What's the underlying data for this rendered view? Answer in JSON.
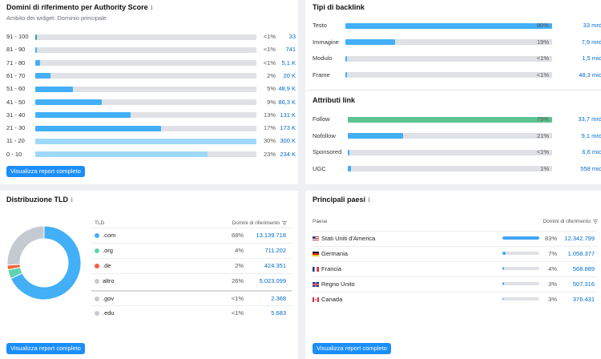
{
  "colors": {
    "bar_blue": "#42aff7",
    "bar_light": "#9ed8fb",
    "bar_teal": "#2aa79b",
    "bar_green": "#5cc391",
    "track": "#dfe1e6",
    "link": "#006dca",
    "button": "#1c8ef7"
  },
  "authority": {
    "title": "Domini di riferimento per Authority Score",
    "subtitle": "Ambito dei widget: Dominio principale",
    "button_label": "Visualizza report completo",
    "rows": [
      {
        "label": "91 - 100",
        "fraction": 0.003,
        "pct": "<1%",
        "value": "33",
        "color": "teal"
      },
      {
        "label": "81 - 90",
        "fraction": 0.003,
        "pct": "<1%",
        "value": "741",
        "color": "blue"
      },
      {
        "label": "71 - 80",
        "fraction": 0.02,
        "pct": "<1%",
        "value": "5,1 K",
        "color": "blue"
      },
      {
        "label": "61 - 70",
        "fraction": 0.07,
        "pct": "2%",
        "value": "20 K",
        "color": "blue"
      },
      {
        "label": "51 - 60",
        "fraction": 0.17,
        "pct": "5%",
        "value": "48,9 K",
        "color": "blue"
      },
      {
        "label": "41 - 50",
        "fraction": 0.3,
        "pct": "9%",
        "value": "86,3 K",
        "color": "blue"
      },
      {
        "label": "31 - 40",
        "fraction": 0.43,
        "pct": "13%",
        "value": "131 K",
        "color": "blue"
      },
      {
        "label": "21 - 30",
        "fraction": 0.57,
        "pct": "17%",
        "value": "173 K",
        "color": "blue"
      },
      {
        "label": "11 - 20",
        "fraction": 1.0,
        "pct": "30%",
        "value": "300 K",
        "color": "light"
      },
      {
        "label": "0 - 10",
        "fraction": 0.78,
        "pct": "23%",
        "value": "234 K",
        "color": "light"
      }
    ]
  },
  "backlink_types": {
    "title": "Tipi di backlink",
    "rows": [
      {
        "label": "Testo",
        "fraction": 1.0,
        "pct": "80%",
        "value": "33 mrd",
        "color": "blue"
      },
      {
        "label": "Immagine",
        "fraction": 0.24,
        "pct": "19%",
        "value": "7,9 mrd",
        "color": "blue"
      },
      {
        "label": "Modulo",
        "fraction": 0.004,
        "pct": "<1%",
        "value": "1,5 mio",
        "color": "blue"
      },
      {
        "label": "Frame",
        "fraction": 0.004,
        "pct": "<1%",
        "value": "48,3 mio",
        "color": "blue"
      }
    ]
  },
  "link_attributes": {
    "title": "Attributi link",
    "rows": [
      {
        "label": "Follow",
        "fraction": 1.0,
        "pct": "79%",
        "value": "33,7 mrd",
        "color": "green"
      },
      {
        "label": "Nofollow",
        "fraction": 0.27,
        "pct": "21%",
        "value": "9,1 mrd",
        "color": "blue"
      },
      {
        "label": "Sponsored",
        "fraction": 0.004,
        "pct": "<1%",
        "value": "6,6 mio",
        "color": "blue"
      },
      {
        "label": "UGC",
        "fraction": 0.014,
        "pct": "1%",
        "value": "558 mio",
        "color": "blue"
      }
    ]
  },
  "tld": {
    "title": "Distribuzione TLD",
    "col_tld": "TLD",
    "col_domains": "Domini di riferimento",
    "button_label": "Visualizza report completo",
    "rows": [
      {
        "name": ".com",
        "pct": "68%",
        "value": "13.139.718",
        "color": "#42aff7"
      },
      {
        "name": ".org",
        "pct": "4%",
        "value": "711.202",
        "color": "#5fd3b0"
      },
      {
        "name": ".de",
        "pct": "2%",
        "value": "424.351",
        "color": "#f0643b"
      },
      {
        "name": "altro",
        "pct": "26%",
        "value": "5.023.099",
        "color": "#c5c9d1"
      },
      {
        "name": ".gov",
        "pct": "<1%",
        "value": "2.368",
        "color": "#c5c9d1"
      },
      {
        "name": ".edu",
        "pct": "<1%",
        "value": "5.683",
        "color": "#c5c9d1"
      }
    ],
    "donut": [
      {
        "name": ".com",
        "share": 68,
        "color": "#42aff7"
      },
      {
        "name": ".org",
        "share": 4,
        "color": "#5fd3b0"
      },
      {
        "name": ".de",
        "share": 2,
        "color": "#f0643b"
      },
      {
        "name": "altro",
        "share": 26,
        "color": "#c5c9d1"
      }
    ]
  },
  "countries": {
    "title": "Principali paesi",
    "col_country": "Paese",
    "col_domains": "Domini di riferimento",
    "button_label": "Visualizza report completo",
    "rows": [
      {
        "name": "Stati Uniti d'America",
        "flag": "us-flag-icon",
        "fraction": 1.0,
        "pct": "83%",
        "value": "12.342.799"
      },
      {
        "name": "Germania",
        "flag": "de-flag-icon",
        "fraction": 0.09,
        "pct": "7%",
        "value": "1.058.377"
      },
      {
        "name": "Francia",
        "flag": "fr-flag-icon",
        "fraction": 0.05,
        "pct": "4%",
        "value": "568.889"
      },
      {
        "name": "Regno Unito",
        "flag": "gb-flag-icon",
        "fraction": 0.04,
        "pct": "3%",
        "value": "507.316"
      },
      {
        "name": "Canada",
        "flag": "ca-flag-icon",
        "fraction": 0.03,
        "pct": "3%",
        "value": "376.431"
      }
    ]
  }
}
